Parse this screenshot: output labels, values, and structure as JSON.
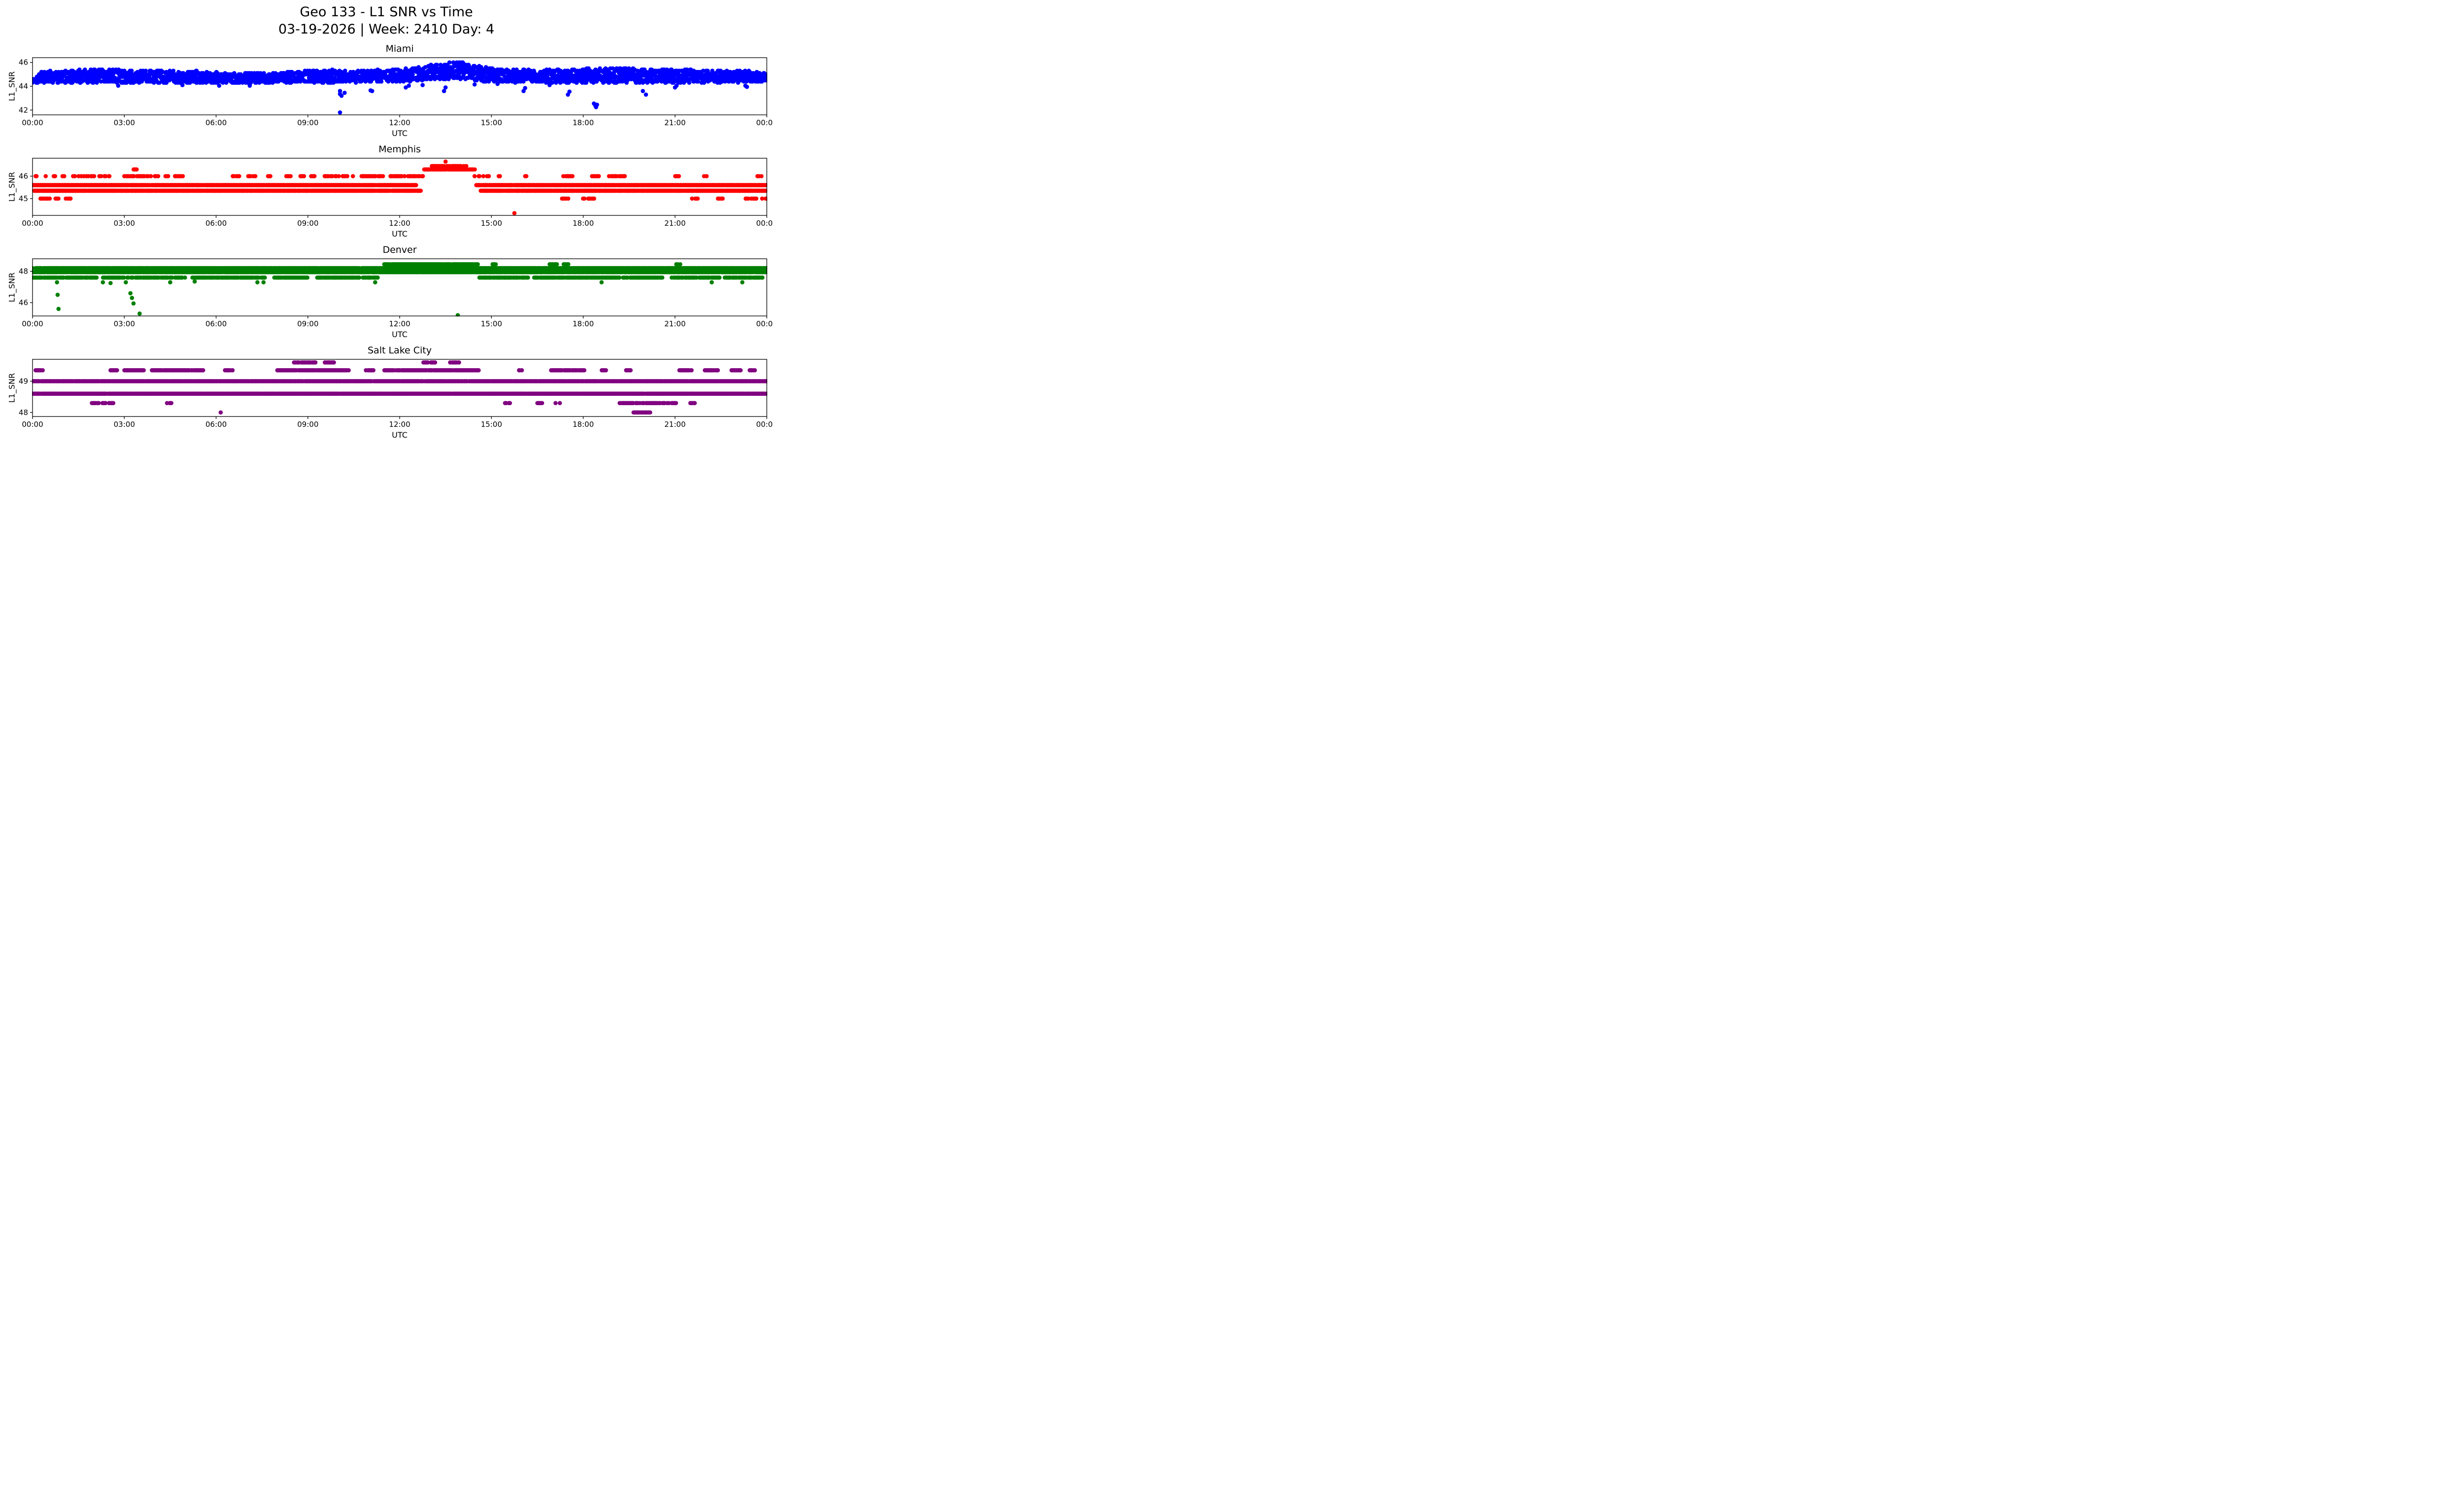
{
  "figure": {
    "title": "Geo 133 - L1 SNR vs Time",
    "subtitle": "03-19-2026 | Week: 2410 Day: 4",
    "background": "#ffffff",
    "axis_color": "#000000"
  },
  "chart_data": [
    {
      "type": "scatter",
      "title": "Miami",
      "color_name": "blue",
      "color": "#0000ff",
      "xlabel": "UTC",
      "ylabel": "L1_SNR",
      "xlim": [
        0,
        24
      ],
      "x_ticks": [
        0,
        3,
        6,
        9,
        12,
        15,
        18,
        21,
        24
      ],
      "x_tick_labels": [
        "00:00",
        "03:00",
        "06:00",
        "09:00",
        "12:00",
        "15:00",
        "18:00",
        "21:00",
        "00:00"
      ],
      "ylim": [
        41.6,
        46.4
      ],
      "y_ticks": [
        42,
        44,
        46
      ],
      "marker_radius": 4.3,
      "seed": 7,
      "envelope": {
        "step_min": 1.0,
        "per_step": 2,
        "quant": 0.1,
        "t": [
          0,
          0.3,
          1.0,
          2.0,
          2.6,
          3.0,
          5.3,
          6.5,
          8.0,
          9.0,
          9.5,
          11.0,
          12.3,
          12.8,
          13.2,
          13.6,
          14.0,
          14.3,
          14.8,
          15.5,
          17.0,
          18.5,
          19.5,
          20.5,
          22.0,
          23.3,
          24.0
        ],
        "lo": [
          44.3,
          44.25,
          44.25,
          44.3,
          44.3,
          44.25,
          44.25,
          44.25,
          44.3,
          44.3,
          44.3,
          44.35,
          44.4,
          44.5,
          44.6,
          44.6,
          44.6,
          44.5,
          44.4,
          44.35,
          44.3,
          44.3,
          44.3,
          44.3,
          44.3,
          44.35,
          44.4
        ],
        "hi": [
          44.6,
          45.25,
          45.3,
          45.45,
          45.45,
          45.35,
          45.3,
          45.1,
          45.2,
          45.3,
          45.4,
          45.35,
          45.5,
          45.7,
          45.85,
          46.0,
          46.05,
          45.8,
          45.6,
          45.4,
          45.4,
          45.5,
          45.55,
          45.4,
          45.35,
          45.3,
          45.1
        ]
      },
      "stripes": [],
      "outliers": [
        [
          2.8,
          44.05
        ],
        [
          4.9,
          44.1
        ],
        [
          6.1,
          44.05
        ],
        [
          7.1,
          44.05
        ],
        [
          10.05,
          43.6
        ],
        [
          10.05,
          43.35
        ],
        [
          10.1,
          43.2
        ],
        [
          10.05,
          41.8
        ],
        [
          10.2,
          43.45
        ],
        [
          11.05,
          43.65
        ],
        [
          11.1,
          43.6
        ],
        [
          12.2,
          43.9
        ],
        [
          12.3,
          44.05
        ],
        [
          12.75,
          44.1
        ],
        [
          13.45,
          43.6
        ],
        [
          13.5,
          43.9
        ],
        [
          14.45,
          44.15
        ],
        [
          15.2,
          44.2
        ],
        [
          16.05,
          43.6
        ],
        [
          16.1,
          43.85
        ],
        [
          16.9,
          44.1
        ],
        [
          17.5,
          43.3
        ],
        [
          17.55,
          43.55
        ],
        [
          18.35,
          42.55
        ],
        [
          18.4,
          42.35
        ],
        [
          18.42,
          42.25
        ],
        [
          18.45,
          42.45
        ],
        [
          19.95,
          43.6
        ],
        [
          20.05,
          43.3
        ],
        [
          21.0,
          43.9
        ],
        [
          21.05,
          44.05
        ],
        [
          23.3,
          44.05
        ],
        [
          23.35,
          43.95
        ]
      ]
    },
    {
      "type": "scatter",
      "title": "Memphis",
      "color_name": "red",
      "color": "#ff0000",
      "xlabel": "UTC",
      "ylabel": "L1_SNR",
      "xlim": [
        0,
        24
      ],
      "x_ticks": [
        0,
        3,
        6,
        9,
        12,
        15,
        18,
        21,
        24
      ],
      "x_tick_labels": [
        "00:00",
        "03:00",
        "06:00",
        "09:00",
        "12:00",
        "15:00",
        "18:00",
        "21:00",
        "00:00"
      ],
      "ylim": [
        44.25,
        46.8
      ],
      "y_ticks": [
        45,
        46
      ],
      "marker_radius": 4.3,
      "seed": 11,
      "stripes": [
        {
          "y": 45.6,
          "step_min": 1.2,
          "skip": 0.08,
          "segs": [
            [
              0,
              12.55
            ],
            [
              14.5,
              24
            ]
          ]
        },
        {
          "y": 45.35,
          "step_min": 1.2,
          "skip": 0.08,
          "segs": [
            [
              0.05,
              12.7
            ],
            [
              14.65,
              24
            ]
          ]
        },
        {
          "y": 45.0,
          "step_min": 3.0,
          "skip": 0.2,
          "segs": [
            [
              0.2,
              0.55
            ],
            [
              0.75,
              0.85
            ],
            [
              1.1,
              1.25
            ],
            [
              17.3,
              17.55
            ],
            [
              18.0,
              18.35
            ],
            [
              21.55,
              21.85
            ],
            [
              22.4,
              22.6
            ],
            [
              23.3,
              23.65
            ],
            [
              23.85,
              24.0
            ]
          ]
        },
        {
          "y": 46.0,
          "step_min": 2.5,
          "skip": 0.25,
          "segs": [
            [
              0.1,
              0.2
            ],
            [
              0.35,
              0.45
            ],
            [
              0.65,
              0.75
            ],
            [
              0.95,
              1.05
            ],
            [
              1.25,
              2.0
            ],
            [
              2.15,
              2.55
            ],
            [
              2.95,
              4.15
            ],
            [
              4.35,
              4.45
            ],
            [
              4.65,
              4.95
            ],
            [
              6.5,
              6.75
            ],
            [
              7.0,
              7.35
            ],
            [
              7.7,
              7.85
            ],
            [
              8.3,
              8.45
            ],
            [
              8.75,
              8.9
            ],
            [
              9.1,
              9.35
            ],
            [
              9.55,
              10.5
            ],
            [
              10.75,
              11.5
            ],
            [
              11.7,
              12.55
            ],
            [
              12.6,
              12.8
            ],
            [
              14.45,
              14.95
            ],
            [
              15.2,
              15.35
            ],
            [
              16.1,
              16.25
            ],
            [
              17.35,
              17.65
            ],
            [
              18.3,
              18.55
            ],
            [
              18.85,
              19.35
            ],
            [
              21.0,
              21.15
            ],
            [
              21.9,
              22.05
            ],
            [
              23.65,
              23.85
            ]
          ]
        },
        {
          "y": 46.3,
          "step_min": 1.5,
          "skip": 0.1,
          "segs": [
            [
              3.3,
              3.4
            ],
            [
              12.8,
              14.45
            ]
          ]
        },
        {
          "y": 46.45,
          "step_min": 2.5,
          "skip": 0.3,
          "segs": [
            [
              13.0,
              14.2
            ]
          ]
        }
      ],
      "outliers": [
        [
          13.5,
          46.65
        ],
        [
          15.75,
          44.35
        ]
      ]
    },
    {
      "type": "scatter",
      "title": "Denver",
      "color_name": "green",
      "color": "#008000",
      "xlabel": "UTC",
      "ylabel": "L1_SNR",
      "xlim": [
        0,
        24
      ],
      "x_ticks": [
        0,
        3,
        6,
        9,
        12,
        15,
        18,
        21,
        24
      ],
      "x_tick_labels": [
        "00:00",
        "03:00",
        "06:00",
        "09:00",
        "12:00",
        "15:00",
        "18:00",
        "21:00",
        "00:00"
      ],
      "ylim": [
        45.15,
        48.8
      ],
      "y_ticks": [
        46,
        48
      ],
      "marker_radius": 4.3,
      "seed": 13,
      "stripes": [
        {
          "y": 48.2,
          "step_min": 1.2,
          "skip": 0.08,
          "segs": [
            [
              0,
              24
            ]
          ]
        },
        {
          "y": 47.95,
          "step_min": 1.2,
          "skip": 0.08,
          "segs": [
            [
              0,
              24
            ]
          ]
        },
        {
          "y": 47.6,
          "step_min": 1.8,
          "skip": 0.15,
          "segs": [
            [
              0,
              2.1
            ],
            [
              2.3,
              3.0
            ],
            [
              3.1,
              5.0
            ],
            [
              5.2,
              7.6
            ],
            [
              7.9,
              9.0
            ],
            [
              9.3,
              11.3
            ],
            [
              14.6,
              16.2
            ],
            [
              16.4,
              19.2
            ],
            [
              19.3,
              20.6
            ],
            [
              20.9,
              22.5
            ],
            [
              22.6,
              23.9
            ]
          ]
        },
        {
          "y": 48.45,
          "step_min": 1.5,
          "skip": 0.1,
          "segs": [
            [
              11.5,
              14.55
            ]
          ]
        },
        {
          "y": 48.45,
          "step_min": 2.5,
          "skip": 0.2,
          "segs": [
            [
              15.05,
              15.15
            ],
            [
              16.9,
              17.15
            ],
            [
              17.35,
              17.55
            ],
            [
              21.05,
              21.2
            ]
          ]
        }
      ],
      "outliers": [
        [
          0.8,
          47.3
        ],
        [
          0.82,
          46.5
        ],
        [
          0.85,
          45.6
        ],
        [
          2.3,
          47.3
        ],
        [
          2.55,
          47.25
        ],
        [
          3.05,
          47.3
        ],
        [
          3.2,
          46.6
        ],
        [
          3.25,
          46.3
        ],
        [
          3.3,
          45.95
        ],
        [
          3.5,
          45.3
        ],
        [
          4.5,
          47.3
        ],
        [
          5.3,
          47.35
        ],
        [
          7.35,
          47.3
        ],
        [
          7.55,
          47.3
        ],
        [
          11.2,
          47.3
        ],
        [
          13.9,
          45.2
        ],
        [
          18.6,
          47.3
        ],
        [
          22.2,
          47.3
        ],
        [
          23.2,
          47.3
        ]
      ]
    },
    {
      "type": "scatter",
      "title": "Salt Lake City",
      "color_name": "purple",
      "color": "#800080",
      "xlabel": "UTC",
      "ylabel": "L1_SNR",
      "xlim": [
        0,
        24
      ],
      "x_ticks": [
        0,
        3,
        6,
        9,
        12,
        15,
        18,
        21,
        24
      ],
      "x_tick_labels": [
        "00:00",
        "03:00",
        "06:00",
        "09:00",
        "12:00",
        "15:00",
        "18:00",
        "21:00",
        "00:00"
      ],
      "ylim": [
        47.87,
        49.7
      ],
      "y_ticks": [
        48,
        49
      ],
      "marker_radius": 4.3,
      "seed": 17,
      "stripes": [
        {
          "y": 49.0,
          "step_min": 1.2,
          "skip": 0.08,
          "segs": [
            [
              0,
              24
            ]
          ]
        },
        {
          "y": 48.6,
          "step_min": 1.2,
          "skip": 0.08,
          "segs": [
            [
              0,
              24
            ]
          ]
        },
        {
          "y": 49.35,
          "step_min": 1.8,
          "skip": 0.1,
          "segs": [
            [
              0.1,
              0.35
            ],
            [
              2.55,
              2.8
            ],
            [
              3.0,
              3.65
            ],
            [
              3.9,
              5.6
            ],
            [
              6.3,
              6.55
            ],
            [
              8.0,
              10.35
            ],
            [
              10.9,
              11.15
            ],
            [
              11.5,
              14.6
            ],
            [
              15.9,
              16.05
            ],
            [
              16.95,
              18.05
            ],
            [
              18.6,
              18.75
            ],
            [
              19.4,
              19.55
            ],
            [
              21.15,
              21.55
            ],
            [
              21.95,
              22.45
            ],
            [
              22.85,
              23.15
            ],
            [
              23.45,
              23.65
            ]
          ]
        },
        {
          "y": 49.6,
          "step_min": 2.0,
          "skip": 0.2,
          "segs": [
            [
              8.55,
              9.25
            ],
            [
              9.55,
              9.85
            ],
            [
              12.75,
              13.15
            ],
            [
              13.65,
              13.95
            ]
          ]
        },
        {
          "y": 48.3,
          "step_min": 2.2,
          "skip": 0.2,
          "segs": [
            [
              1.95,
              2.65
            ],
            [
              4.4,
              4.55
            ],
            [
              15.45,
              15.6
            ],
            [
              16.5,
              16.65
            ],
            [
              17.1,
              17.25
            ],
            [
              19.2,
              21.05
            ],
            [
              21.5,
              21.65
            ]
          ]
        },
        {
          "y": 48.0,
          "step_min": 2.0,
          "skip": 0.1,
          "segs": [
            [
              19.65,
              20.2
            ]
          ]
        }
      ],
      "outliers": [
        [
          6.15,
          48.0
        ]
      ]
    }
  ]
}
